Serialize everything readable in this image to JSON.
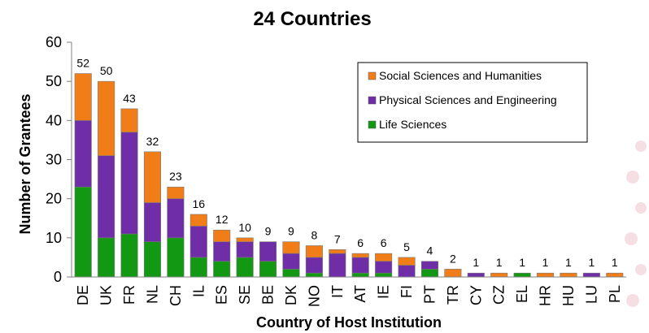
{
  "chart_data": {
    "type": "bar",
    "stacked": true,
    "title": "24 Countries",
    "xlabel": "Country of Host Institution",
    "ylabel": "Number of Grantees",
    "ylim": [
      0,
      60
    ],
    "yticks": [
      "0",
      "10",
      "20",
      "30",
      "40",
      "50",
      "60"
    ],
    "categories": [
      "DE",
      "UK",
      "FR",
      "NL",
      "CH",
      "IL",
      "ES",
      "SE",
      "BE",
      "DK",
      "NO",
      "IT",
      "AT",
      "IE",
      "FI",
      "PT",
      "TR",
      "CY",
      "CZ",
      "EL",
      "HR",
      "HU",
      "LU",
      "PL"
    ],
    "totals": [
      "52",
      "50",
      "43",
      "32",
      "23",
      "16",
      "12",
      "10",
      "9",
      "9",
      "8",
      "7",
      "6",
      "6",
      "5",
      "4",
      "2",
      "1",
      "1",
      "1",
      "1",
      "1",
      "1",
      "1"
    ],
    "series": [
      {
        "name": "Life Sciences",
        "color": "#139813",
        "values": [
          23,
          10,
          11,
          9,
          10,
          5,
          4,
          5,
          4,
          2,
          1,
          0,
          1,
          1,
          0,
          2,
          0,
          0,
          0,
          1,
          0,
          0,
          0,
          0
        ]
      },
      {
        "name": "Physical Sciences and Engineering",
        "color": "#6f2da8",
        "values": [
          17,
          21,
          26,
          10,
          10,
          8,
          5,
          4,
          5,
          4,
          4,
          6,
          4,
          3,
          3,
          2,
          0,
          1,
          0,
          0,
          0,
          0,
          1,
          0
        ]
      },
      {
        "name": "Social Sciences and Humanities",
        "color": "#f07d17",
        "values": [
          12,
          19,
          6,
          13,
          3,
          3,
          3,
          1,
          0,
          3,
          3,
          1,
          1,
          2,
          2,
          0,
          2,
          0,
          1,
          0,
          1,
          1,
          0,
          1
        ]
      }
    ],
    "legend_position": "top-right",
    "legend_order": [
      "Social Sciences and Humanities",
      "Physical Sciences and Engineering",
      "Life Sciences"
    ],
    "grid": false
  }
}
